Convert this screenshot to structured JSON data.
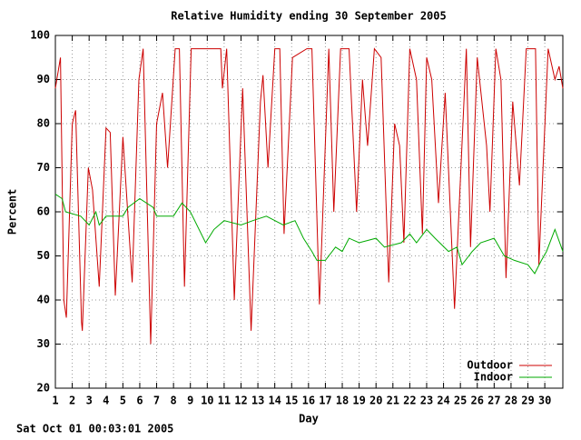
{
  "chart_data": {
    "type": "line",
    "title": "Relative Humidity ending 30 September 2005",
    "x_label": "Day",
    "y_label": "Percent",
    "footer": "Sat Oct 01 00:03:01 2005",
    "xlim": [
      1,
      31.07
    ],
    "ylim": [
      20,
      100
    ],
    "xticks": [
      1,
      2,
      3,
      4,
      5,
      6,
      7,
      8,
      9,
      10,
      11,
      12,
      13,
      14,
      15,
      16,
      17,
      18,
      19,
      20,
      21,
      22,
      23,
      24,
      25,
      26,
      27,
      28,
      29,
      30
    ],
    "yticks": [
      20,
      30,
      40,
      50,
      60,
      70,
      80,
      90,
      100
    ],
    "grid": true,
    "legend": "bottom-right",
    "series": [
      {
        "name": "Outdoor",
        "color": "#cc0000",
        "x": [
          1,
          1.3,
          1.5,
          1.65,
          2.0,
          2.2,
          2.55,
          2.6,
          2.95,
          3.2,
          3.6,
          4.0,
          4.25,
          4.55,
          5.0,
          5.55,
          5.95,
          6.2,
          6.65,
          7.0,
          7.35,
          7.65,
          8.1,
          8.35,
          8.65,
          9.05,
          10.8,
          10.9,
          11.15,
          11.6,
          12.1,
          12.6,
          13.15,
          13.3,
          13.6,
          14.0,
          14.3,
          14.55,
          15.05,
          15.9,
          16.2,
          16.65,
          17.2,
          17.5,
          17.9,
          18.4,
          18.85,
          19.2,
          19.5,
          19.9,
          20.3,
          20.75,
          21.1,
          21.4,
          21.65,
          22.0,
          22.4,
          22.75,
          23.0,
          23.3,
          23.7,
          24.1,
          24.65,
          25.35,
          25.6,
          26.0,
          26.55,
          26.75,
          27.1,
          27.4,
          27.7,
          28.1,
          28.5,
          28.9,
          29.45,
          29.65,
          30.2,
          30.6,
          30.85,
          31.07
        ],
        "values": [
          88,
          95,
          40,
          36,
          80,
          83,
          35,
          33,
          70,
          65,
          43,
          79,
          78,
          41,
          77,
          44,
          90,
          97,
          30,
          80,
          87,
          70,
          97,
          97,
          43,
          97,
          97,
          88,
          97,
          40,
          88,
          33,
          85,
          91,
          70,
          97,
          97,
          55,
          95,
          97,
          97,
          39,
          97,
          60,
          97,
          97,
          60,
          90,
          75,
          97,
          95,
          44,
          80,
          75,
          53,
          97,
          90,
          55,
          95,
          90,
          62,
          87,
          38,
          97,
          52,
          95,
          75,
          60,
          97,
          90,
          45,
          85,
          66,
          97,
          97,
          48,
          97,
          90,
          93,
          88
        ]
      },
      {
        "name": "Indoor",
        "color": "#00aa00",
        "x": [
          1,
          1.4,
          1.6,
          2.5,
          3.0,
          3.4,
          3.6,
          4.0,
          5.0,
          5.3,
          6.0,
          6.8,
          7.0,
          8.0,
          8.5,
          9.0,
          9.9,
          10.4,
          11.0,
          12.0,
          12.7,
          13.5,
          14.5,
          15.2,
          15.7,
          16.2,
          16.5,
          17.0,
          17.6,
          18.0,
          18.4,
          19.0,
          20.0,
          20.5,
          21.5,
          22.0,
          22.4,
          23.0,
          23.5,
          24.3,
          24.8,
          25.1,
          25.7,
          26.2,
          27.0,
          27.6,
          28.2,
          29.0,
          29.4,
          29.8,
          30.1,
          30.6,
          31.07
        ],
        "values": [
          64,
          63,
          60,
          59,
          57,
          60,
          57,
          59,
          59,
          61,
          63,
          61,
          59,
          59,
          62,
          60,
          53,
          56,
          58,
          57,
          58,
          59,
          57,
          58,
          54,
          51,
          49,
          49,
          52,
          51,
          54,
          53,
          54,
          52,
          53,
          55,
          53,
          56,
          54,
          51,
          52,
          48,
          51,
          53,
          54,
          50,
          49,
          48,
          46,
          49,
          51,
          56,
          51
        ]
      }
    ]
  }
}
